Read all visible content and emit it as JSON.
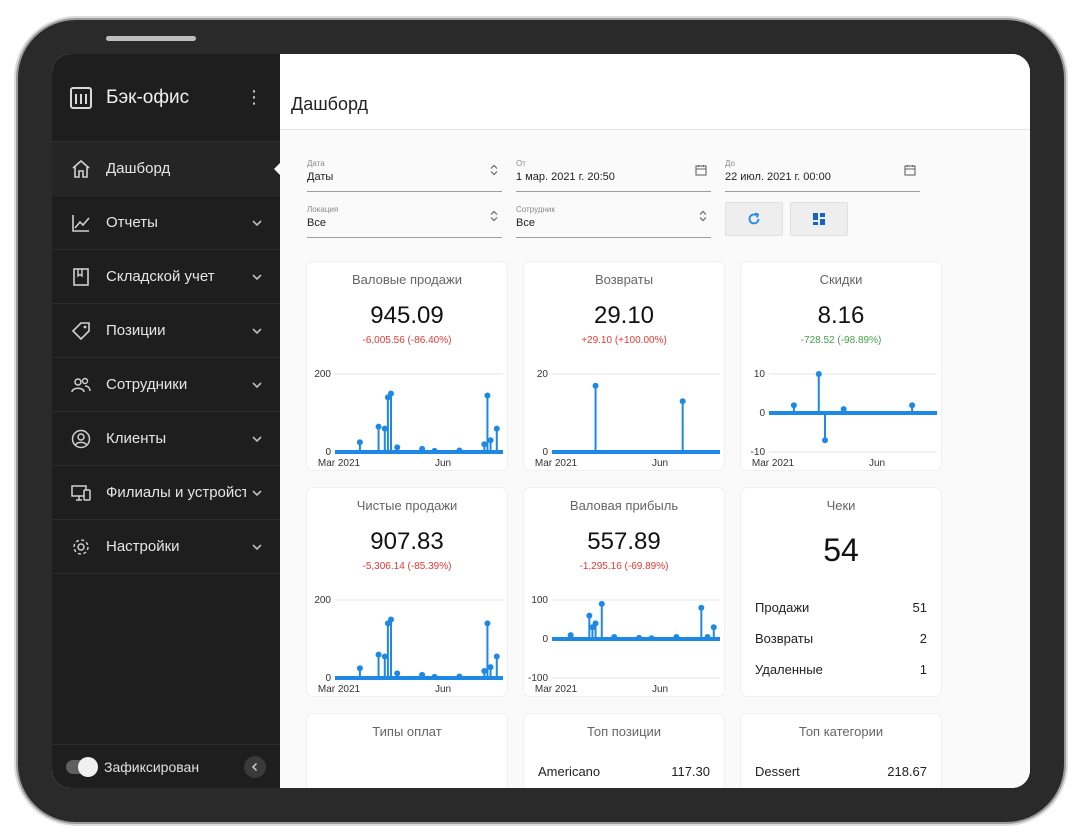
{
  "sidebar": {
    "brand": "Бэк-офис",
    "items": [
      {
        "label": "Дашборд",
        "icon": "home-icon"
      },
      {
        "label": "Отчеты",
        "icon": "chart-line-icon"
      },
      {
        "label": "Складской учет",
        "icon": "book-icon"
      },
      {
        "label": "Позиции",
        "icon": "tag-icon"
      },
      {
        "label": "Сотрудники",
        "icon": "users-icon"
      },
      {
        "label": "Клиенты",
        "icon": "user-circle-icon"
      },
      {
        "label": "Филиалы и устройства",
        "icon": "devices-icon"
      },
      {
        "label": "Настройки",
        "icon": "gear-icon"
      }
    ],
    "footer_label": "Зафиксирован"
  },
  "header": {
    "title": "Дашборд"
  },
  "filters": {
    "date": {
      "label": "Дата",
      "value": "Даты"
    },
    "from": {
      "label": "От",
      "value": "1 мар. 2021 г. 20:50"
    },
    "to": {
      "label": "До",
      "value": "22 июл. 2021 г. 00:00"
    },
    "location": {
      "label": "Локация",
      "value": "Все"
    },
    "employee": {
      "label": "Сотрудник",
      "value": "Все"
    }
  },
  "colors": {
    "accent": "#1e88e5",
    "negative": "#e53935",
    "positive": "#43a047"
  },
  "cards": {
    "gross_sales": {
      "title": "Валовые продажи",
      "value": "945.09",
      "delta": "-6,005.56 (-86.40%)"
    },
    "refunds": {
      "title": "Возвраты",
      "value": "29.10",
      "delta": "+29.10 (+100.00%)"
    },
    "discounts": {
      "title": "Скидки",
      "value": "8.16",
      "delta": "-728.52 (-98.89%)"
    },
    "net_sales": {
      "title": "Чистые продажи",
      "value": "907.83",
      "delta": "-5,306.14 (-85.39%)"
    },
    "gross_profit": {
      "title": "Валовая прибыль",
      "value": "557.89",
      "delta": "-1,295.16 (-69.89%)"
    },
    "receipts": {
      "title": "Чеки",
      "value": "54",
      "rows": [
        {
          "label": "Продажи",
          "value": "51"
        },
        {
          "label": "Возвраты",
          "value": "2"
        },
        {
          "label": "Удаленные",
          "value": "1"
        }
      ]
    },
    "payment_types": {
      "title": "Типы оплат"
    },
    "top_items": {
      "title": "Топ позиции",
      "rows": [
        {
          "label": "Americano",
          "value": "117.30"
        }
      ]
    },
    "top_categories": {
      "title": "Топ категории",
      "rows": [
        {
          "label": "Dessert",
          "value": "218.67"
        }
      ]
    }
  },
  "chart_data": [
    {
      "id": "gross_sales",
      "type": "line",
      "ylim": [
        0,
        200
      ],
      "yticks": [
        "200",
        "0"
      ],
      "xticks": [
        "Mar 2021",
        "Jun"
      ],
      "x": [
        0,
        4,
        7,
        8,
        8.5,
        9,
        10,
        14,
        16,
        20,
        24,
        24.5,
        25,
        26,
        27
      ],
      "values": [
        0,
        25,
        65,
        60,
        140,
        150,
        12,
        8,
        3,
        4,
        20,
        145,
        30,
        60,
        0
      ]
    },
    {
      "id": "refunds",
      "type": "line",
      "ylim": [
        0,
        20
      ],
      "yticks": [
        "20",
        "0"
      ],
      "xticks": [
        "Mar 2021",
        "Jun"
      ],
      "x": [
        0,
        6,
        7,
        8,
        20,
        21,
        22,
        27
      ],
      "values": [
        0,
        0,
        17,
        0,
        0,
        13,
        0,
        0
      ]
    },
    {
      "id": "discounts",
      "type": "line",
      "ylim": [
        -10,
        10
      ],
      "yticks": [
        "10",
        "0",
        "-10"
      ],
      "xticks": [
        "Mar 2021",
        "Jun"
      ],
      "x": [
        0,
        4,
        6,
        8,
        9,
        10,
        11,
        12,
        14,
        21,
        23,
        27
      ],
      "values": [
        0,
        2,
        0,
        10,
        -7,
        0,
        0,
        1,
        0,
        0,
        2,
        0
      ]
    },
    {
      "id": "net_sales",
      "type": "line",
      "ylim": [
        0,
        200
      ],
      "yticks": [
        "200",
        "0"
      ],
      "xticks": [
        "Mar 2021",
        "Jun"
      ],
      "x": [
        0,
        4,
        7,
        8,
        8.5,
        9,
        10,
        14,
        16,
        20,
        24,
        24.5,
        25,
        26,
        27
      ],
      "values": [
        0,
        25,
        60,
        55,
        140,
        150,
        12,
        8,
        3,
        4,
        18,
        140,
        28,
        55,
        0
      ]
    },
    {
      "id": "gross_profit",
      "type": "line",
      "ylim": [
        -100,
        100
      ],
      "yticks": [
        "100",
        "0",
        "-100"
      ],
      "xticks": [
        "Mar 2021",
        "Jun"
      ],
      "x": [
        0,
        3,
        6,
        6.5,
        7,
        8,
        9,
        10,
        14,
        16,
        20,
        24,
        25,
        26,
        27
      ],
      "values": [
        0,
        10,
        60,
        30,
        40,
        90,
        0,
        5,
        3,
        2,
        5,
        80,
        5,
        30,
        0
      ]
    }
  ]
}
